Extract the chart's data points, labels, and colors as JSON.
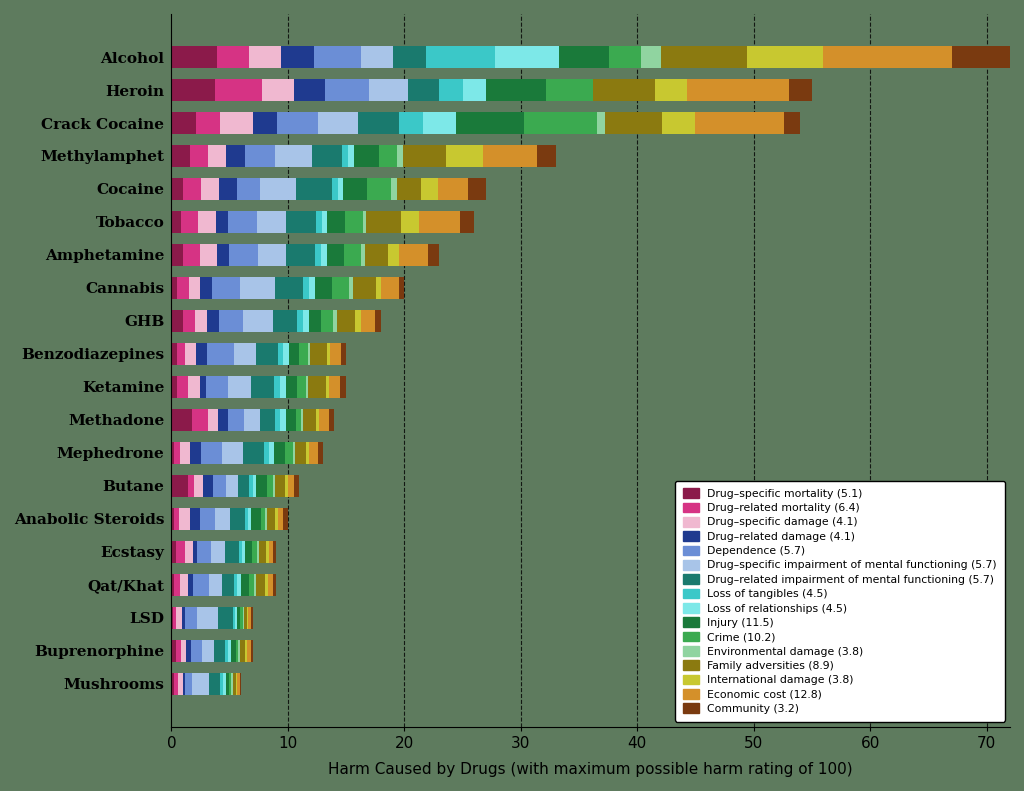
{
  "drugs": [
    "Alcohol",
    "Heroin",
    "Crack Cocaine",
    "Methylamphet",
    "Cocaine",
    "Tobacco",
    "Amphetamine",
    "Cannabis",
    "GHB",
    "Benzodiazepines",
    "Ketamine",
    "Methadone",
    "Mephedrone",
    "Butane",
    "Anabolic Steroids",
    "Ecstasy",
    "Qat/Khat",
    "LSD",
    "Buprenorphine",
    "Mushrooms"
  ],
  "categories": [
    "Drug–specific mortality (5.1)",
    "Drug–related mortality (6.4)",
    "Drug–specific damage (4.1)",
    "Drug–related damage (4.1)",
    "Dependence (5.7)",
    "Drug–specific impairment of mental functioning (5.7)",
    "Drug–related impairment of mental functioning (5.7)",
    "Loss of tangibles (4.5)",
    "Loss of relationships (4.5)",
    "Injury (11.5)",
    "Crime (10.2)",
    "Environmental damage (3.8)",
    "Family adversities (8.9)",
    "International damage (3.8)",
    "Economic cost (12.8)",
    "Community (3.2)"
  ],
  "nutt_data": {
    "Alcohol": [
      2.1,
      1.5,
      1.5,
      1.5,
      2.2,
      1.5,
      1.5,
      3.2,
      3.0,
      2.3,
      1.5,
      0.9,
      4.0,
      3.5,
      6.0,
      2.7
    ],
    "Heroin": [
      2.8,
      3.0,
      2.0,
      2.0,
      2.8,
      2.5,
      2.0,
      1.5,
      1.5,
      3.8,
      3.0,
      0.0,
      4.0,
      2.0,
      6.5,
      1.5
    ],
    "Crack Cocaine": [
      1.5,
      1.5,
      2.0,
      1.5,
      2.5,
      2.5,
      2.5,
      1.5,
      2.0,
      4.2,
      4.5,
      0.5,
      3.5,
      2.0,
      5.5,
      1.0
    ],
    "Methylamphet": [
      1.5,
      1.5,
      1.5,
      1.5,
      2.5,
      3.0,
      2.5,
      0.5,
      0.5,
      2.0,
      1.5,
      0.5,
      3.5,
      3.0,
      4.5,
      1.5
    ],
    "Cocaine": [
      1.0,
      1.5,
      1.5,
      1.5,
      2.0,
      3.0,
      3.0,
      0.5,
      0.5,
      2.0,
      2.0,
      0.5,
      2.0,
      1.5,
      2.5,
      1.5
    ],
    "Tobacco": [
      0.8,
      1.5,
      1.5,
      1.0,
      2.5,
      2.5,
      2.5,
      0.5,
      0.5,
      1.5,
      1.5,
      0.3,
      3.0,
      1.5,
      3.5,
      1.2
    ],
    "Amphetamine": [
      1.0,
      1.5,
      1.5,
      1.0,
      2.5,
      2.5,
      2.5,
      0.5,
      0.5,
      1.5,
      1.5,
      0.3,
      2.0,
      1.0,
      2.5,
      1.0
    ],
    "Cannabis": [
      0.5,
      1.0,
      1.0,
      1.0,
      2.5,
      3.0,
      2.5,
      0.5,
      0.5,
      1.5,
      1.5,
      0.3,
      2.0,
      0.5,
      1.5,
      0.5
    ],
    "GHB": [
      1.0,
      1.0,
      1.0,
      1.0,
      2.0,
      2.5,
      2.0,
      0.5,
      0.5,
      1.0,
      1.0,
      0.3,
      1.5,
      0.5,
      1.2,
      0.5
    ],
    "Benzodiazepines": [
      0.5,
      0.8,
      1.0,
      1.0,
      2.5,
      2.0,
      2.0,
      0.5,
      0.5,
      1.0,
      0.8,
      0.2,
      1.5,
      0.3,
      1.0,
      0.5
    ],
    "Ketamine": [
      0.5,
      1.0,
      1.0,
      0.5,
      2.0,
      2.0,
      2.0,
      0.5,
      0.5,
      1.0,
      0.8,
      0.2,
      1.5,
      0.3,
      1.0,
      0.5
    ],
    "Methadone": [
      2.0,
      1.5,
      1.0,
      1.0,
      1.5,
      1.5,
      1.5,
      0.5,
      0.5,
      1.0,
      0.5,
      0.2,
      1.2,
      0.3,
      1.0,
      0.5
    ],
    "Mephedrone": [
      0.3,
      0.5,
      1.0,
      1.0,
      2.0,
      2.0,
      2.0,
      0.5,
      0.5,
      1.0,
      0.8,
      0.2,
      1.0,
      0.3,
      0.8,
      0.5
    ],
    "Butane": [
      1.5,
      0.5,
      0.8,
      0.8,
      1.2,
      1.0,
      1.0,
      0.3,
      0.3,
      1.0,
      0.5,
      0.2,
      0.8,
      0.3,
      0.5,
      0.5
    ],
    "Anabolic Steroids": [
      0.3,
      0.5,
      1.0,
      1.0,
      1.5,
      1.5,
      1.5,
      0.3,
      0.3,
      1.0,
      0.3,
      0.2,
      0.8,
      0.3,
      0.5,
      0.5
    ],
    "Ecstasy": [
      0.5,
      1.0,
      0.8,
      0.5,
      1.5,
      1.5,
      1.5,
      0.3,
      0.3,
      0.8,
      0.5,
      0.2,
      0.8,
      0.3,
      0.5,
      0.3
    ],
    "Qat/Khat": [
      0.3,
      0.5,
      0.8,
      0.5,
      1.5,
      1.2,
      1.2,
      0.3,
      0.3,
      0.8,
      0.5,
      0.2,
      0.8,
      0.3,
      0.5,
      0.3
    ],
    "LSD": [
      0.2,
      0.3,
      0.5,
      0.3,
      1.2,
      2.0,
      1.5,
      0.2,
      0.2,
      0.3,
      0.2,
      0.1,
      0.3,
      0.1,
      0.3,
      0.2
    ],
    "Buprenorphine": [
      0.5,
      0.5,
      0.5,
      0.5,
      1.2,
      1.2,
      1.2,
      0.3,
      0.3,
      0.5,
      0.3,
      0.2,
      0.5,
      0.2,
      0.4,
      0.2
    ],
    "Mushrooms": [
      0.2,
      0.3,
      0.3,
      0.2,
      0.5,
      1.2,
      0.8,
      0.2,
      0.2,
      0.2,
      0.2,
      0.1,
      0.2,
      0.1,
      0.2,
      0.1
    ]
  },
  "colors": [
    "#8B1A4A",
    "#D63384",
    "#F0B8D0",
    "#1F3A8F",
    "#6B8ED6",
    "#A8C4E8",
    "#1A7A6E",
    "#3BC8C8",
    "#7DE8E8",
    "#1A7A3A",
    "#3BAA50",
    "#90D4A0",
    "#8B7A10",
    "#C8C830",
    "#D4902A",
    "#7A3A10"
  ],
  "background_color": "#5E7B5E",
  "xlabel": "Harm Caused by Drugs (with maximum possible harm rating of 100)",
  "xlim": [
    0,
    72
  ],
  "xticks": [
    0,
    10,
    20,
    30,
    40,
    50,
    60,
    70
  ]
}
